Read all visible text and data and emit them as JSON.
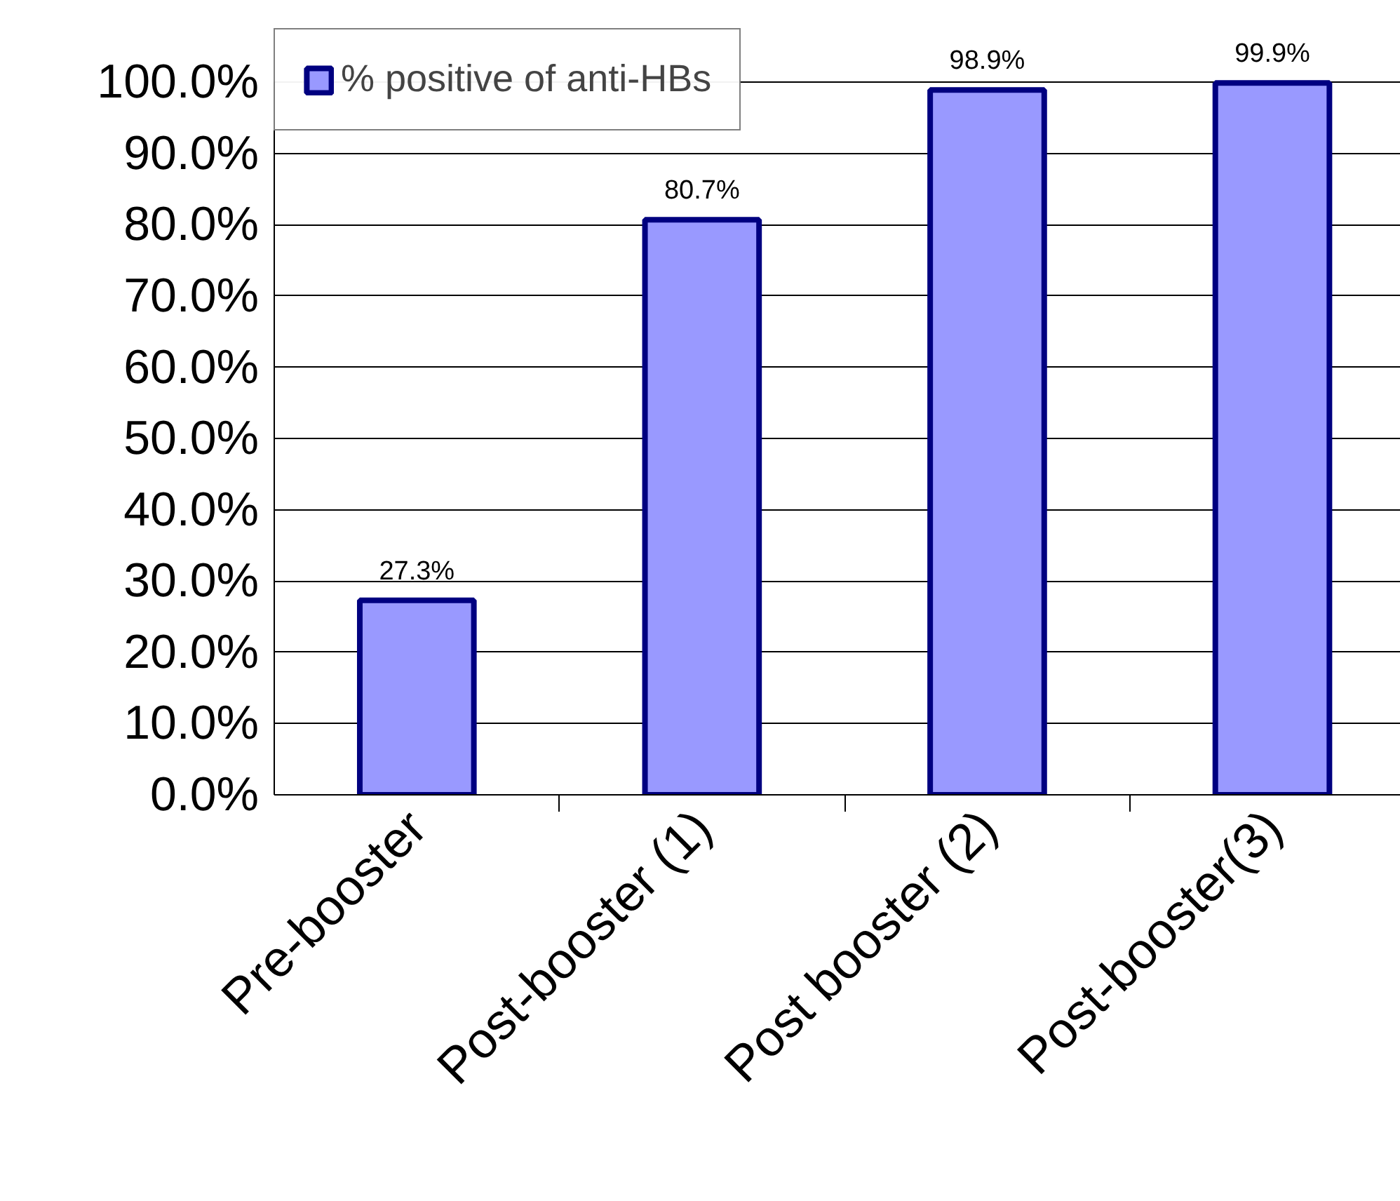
{
  "chart_data": {
    "type": "bar",
    "categories": [
      "Pre-booster",
      "Post-booster (1)",
      "Post booster (2)",
      "Post-booster(3)"
    ],
    "series": [
      {
        "name": "% positive of anti-HBs",
        "color": "#9999ff",
        "values": [
          27.3,
          80.7,
          98.9,
          99.9
        ],
        "value_labels": [
          "27.3%",
          "80.7%",
          "98.9%",
          "99.9%"
        ]
      }
    ],
    "ylim": [
      0,
      100
    ],
    "yticks": [
      {
        "value": 0,
        "label": "0.0%"
      },
      {
        "value": 10,
        "label": "10.0%"
      },
      {
        "value": 20,
        "label": "20.0%"
      },
      {
        "value": 30,
        "label": "30.0%"
      },
      {
        "value": 40,
        "label": "40.0%"
      },
      {
        "value": 50,
        "label": "50.0%"
      },
      {
        "value": 60,
        "label": "60.0%"
      },
      {
        "value": 70,
        "label": "70.0%"
      },
      {
        "value": 80,
        "label": "80.0%"
      },
      {
        "value": 90,
        "label": "90.0%"
      },
      {
        "value": 100,
        "label": "100.0%"
      }
    ],
    "grid": "y",
    "legend": "top left"
  }
}
